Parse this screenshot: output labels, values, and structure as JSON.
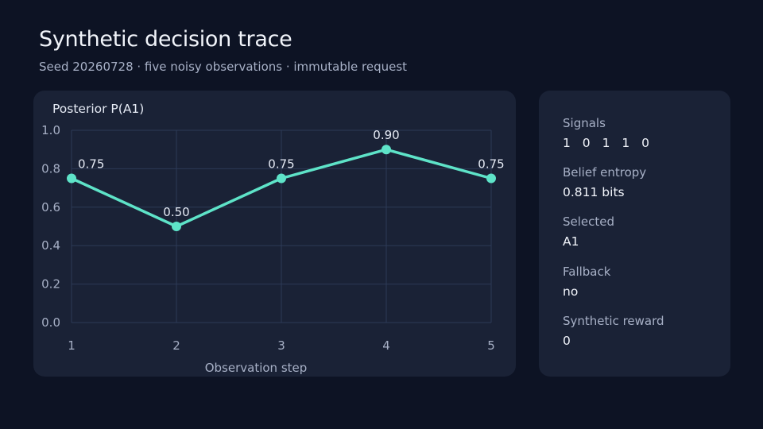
{
  "header": {
    "title": "Synthetic decision trace",
    "subtitle": "Seed 20260728 · five noisy observations · immutable request"
  },
  "chart_data": {
    "type": "line",
    "title": "Posterior P(A1)",
    "xlabel": "Observation step",
    "ylabel": "",
    "x": [
      1,
      2,
      3,
      4,
      5
    ],
    "values": [
      0.75,
      0.5,
      0.75,
      0.9,
      0.75
    ],
    "data_labels": [
      "0.75",
      "0.50",
      "0.75",
      "0.90",
      "0.75"
    ],
    "x_ticks": [
      "1",
      "2",
      "3",
      "4",
      "5"
    ],
    "y_ticks": [
      "0.0",
      "0.2",
      "0.4",
      "0.6",
      "0.8",
      "1.0"
    ],
    "y_tick_values": [
      0,
      0.2,
      0.4,
      0.6,
      0.8,
      1.0
    ],
    "xlim": [
      1,
      5
    ],
    "ylim": [
      0,
      1
    ],
    "grid": true,
    "color": "#5ee3c8"
  },
  "stats": [
    {
      "label": "Signals",
      "value": "1 0 1 1 0"
    },
    {
      "label": "Belief entropy",
      "value": "0.811 bits"
    },
    {
      "label": "Selected",
      "value": "A1"
    },
    {
      "label": "Fallback",
      "value": "no"
    },
    {
      "label": "Synthetic reward",
      "value": "0"
    }
  ]
}
